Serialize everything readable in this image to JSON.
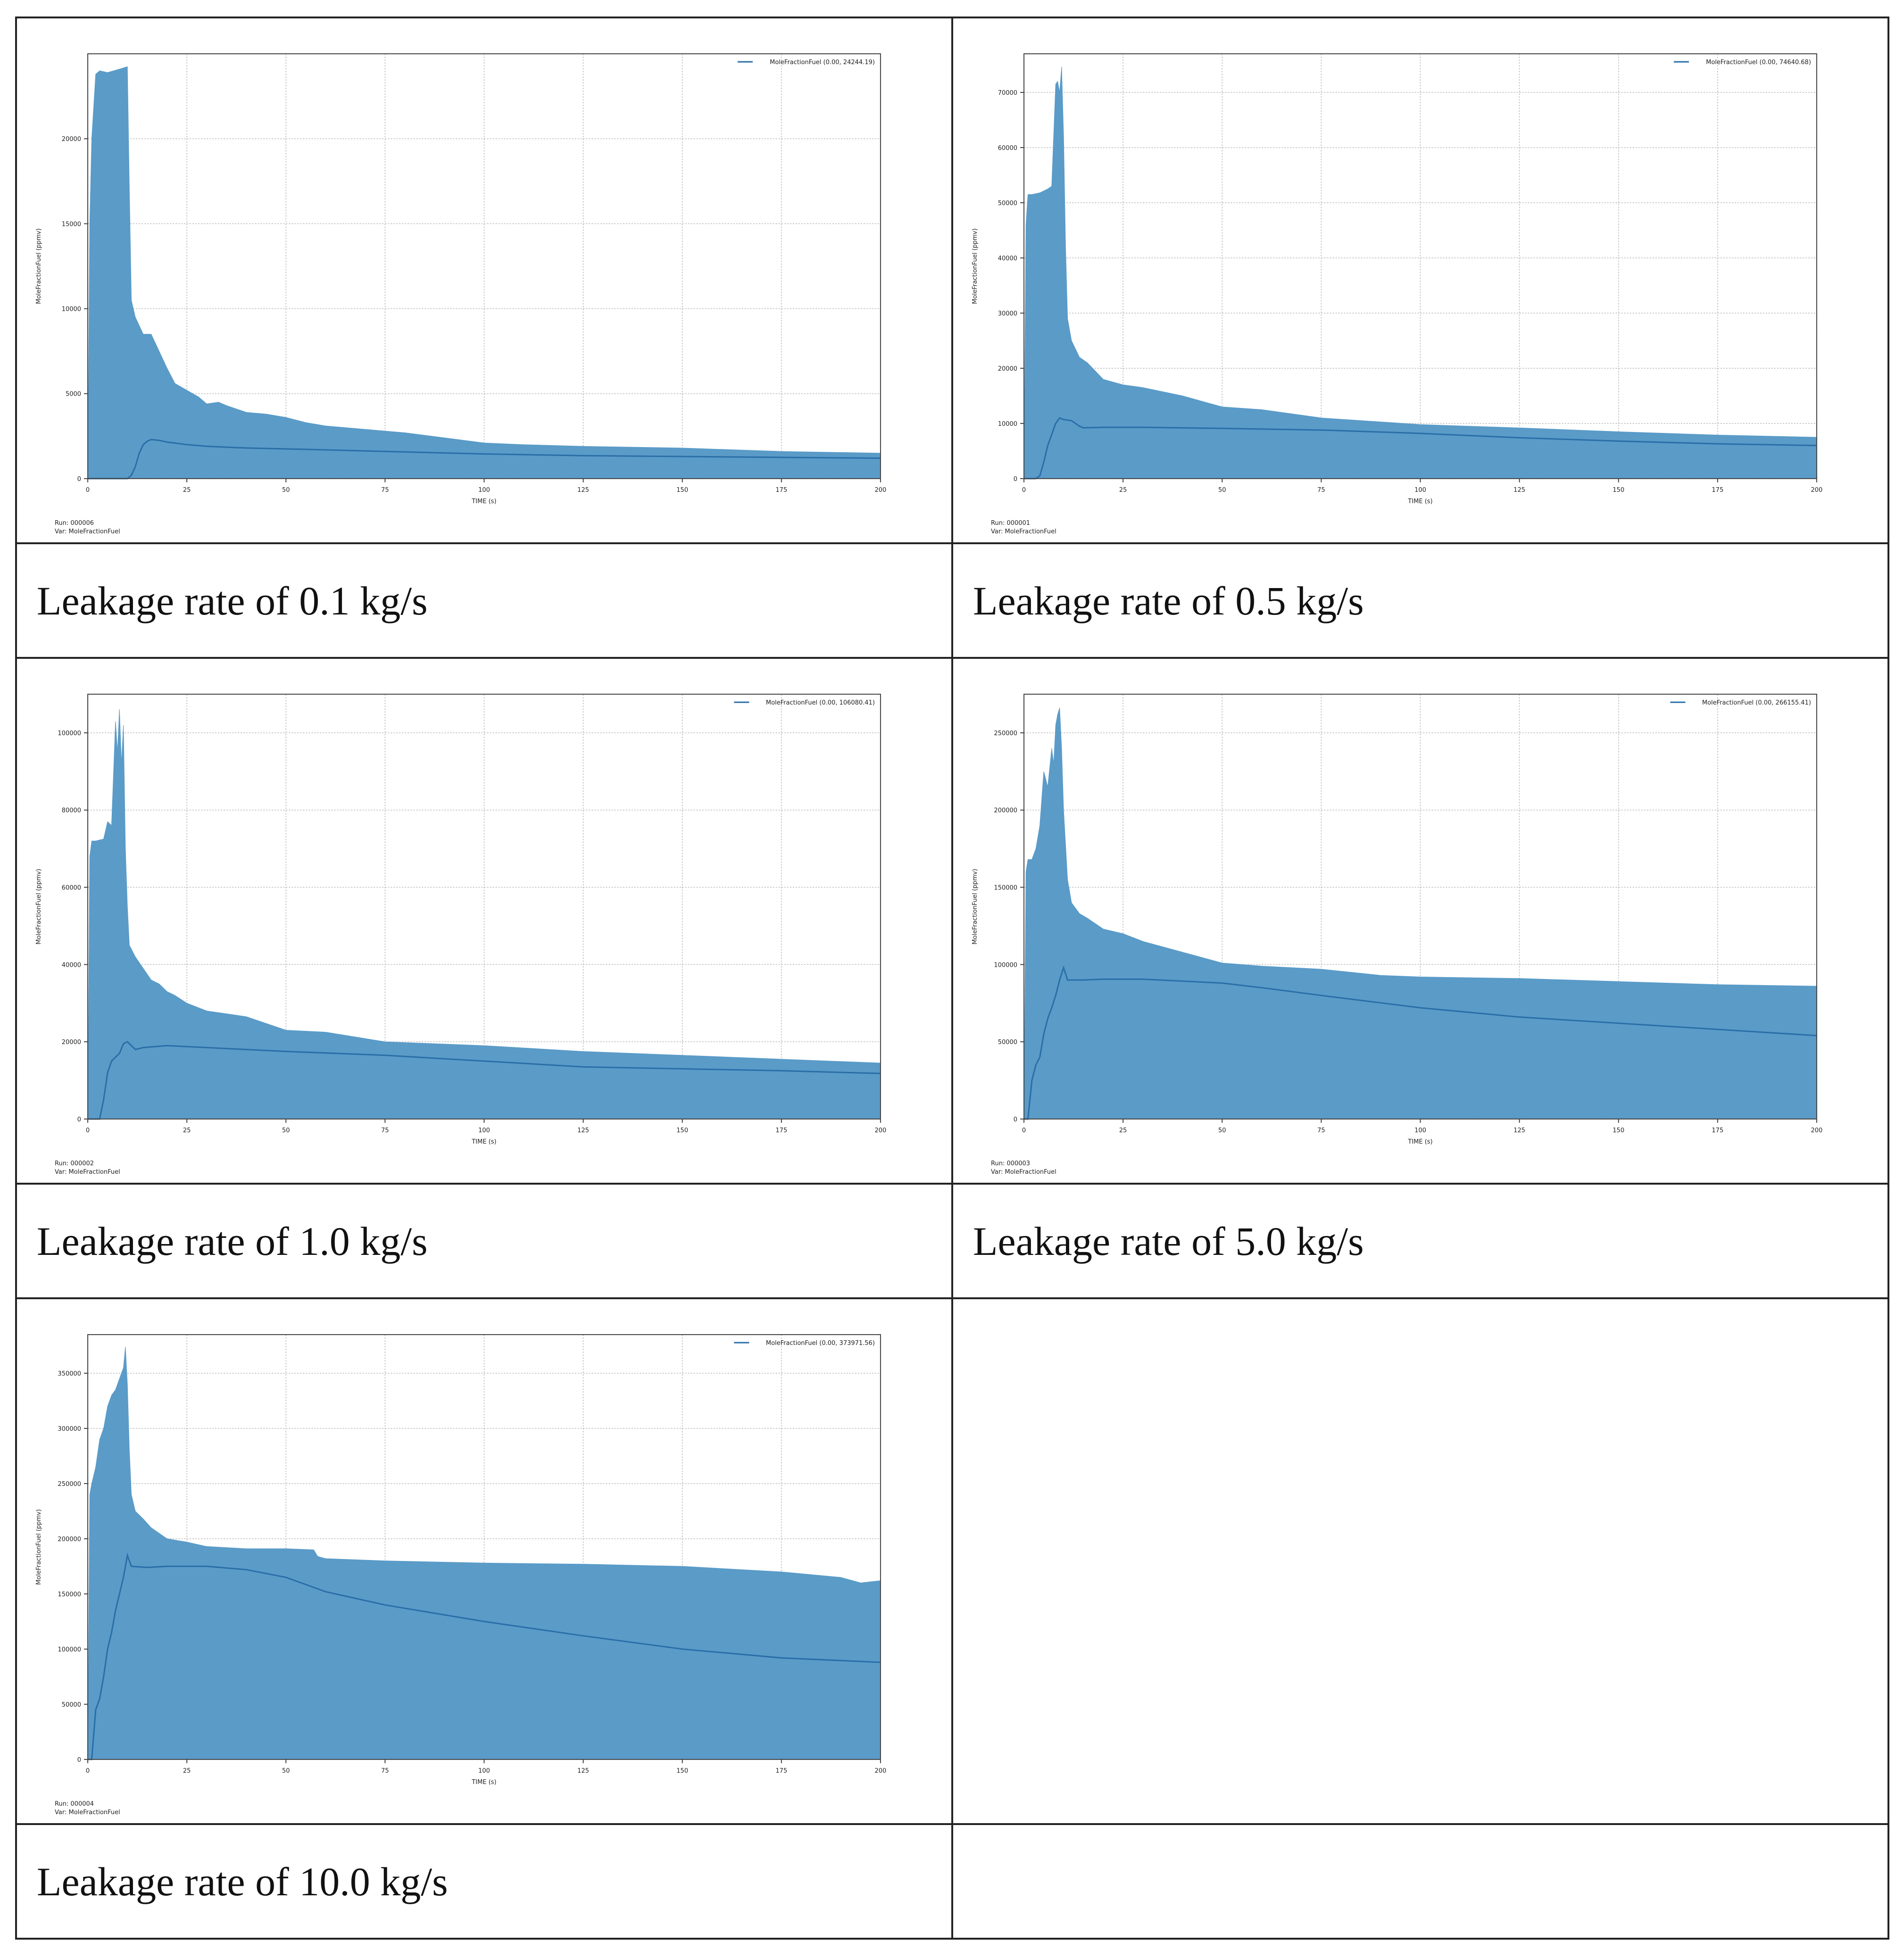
{
  "colors": {
    "fill": "#5a9bc8",
    "line": "#2a6ea8",
    "grid": "#b8b8b8",
    "frame": "#444444"
  },
  "captions": [
    "Leakage rate of 0.1 kg/s",
    "Leakage rate of 0.5 kg/s",
    "Leakage rate of 1.0 kg/s",
    "Leakage rate of 5.0 kg/s",
    "Leakage rate of 10.0 kg/s"
  ],
  "chart_data": [
    {
      "type": "area",
      "xlabel": "TIME (s)",
      "ylabel": "MoleFractionFuel (ppmv)",
      "xlim": [
        0,
        200
      ],
      "ylim": [
        0,
        25000
      ],
      "xticks": [
        0,
        25,
        50,
        75,
        100,
        125,
        150,
        175,
        200
      ],
      "yticks": [
        0,
        5000,
        10000,
        15000,
        20000
      ],
      "legend": "MoleFractionFuel (0.00, 24244.19)",
      "legend_position": "top-right",
      "grid": true,
      "footer": [
        "Run: 000006",
        "Var: MoleFractionFuel"
      ],
      "series": [
        {
          "role": "envelope",
          "x": [
            0,
            0.5,
            1,
            2,
            3,
            5,
            8,
            10,
            10.5,
            11,
            12,
            14,
            16,
            18,
            20,
            22,
            25,
            28,
            30,
            33,
            35,
            40,
            45,
            50,
            55,
            60,
            70,
            80,
            90,
            100,
            110,
            125,
            150,
            175,
            200
          ],
          "y": [
            0,
            15000,
            20000,
            23800,
            24000,
            23900,
            24100,
            24244,
            17000,
            10500,
            9500,
            8500,
            8500,
            7500,
            6500,
            5600,
            5200,
            4800,
            4400,
            4500,
            4300,
            3900,
            3800,
            3600,
            3300,
            3100,
            2900,
            2700,
            2400,
            2100,
            2000,
            1900,
            1800,
            1600,
            1500
          ]
        },
        {
          "role": "line",
          "x": [
            0,
            10,
            11,
            12,
            13,
            14,
            15,
            16,
            18,
            20,
            25,
            30,
            40,
            50,
            75,
            100,
            125,
            150,
            175,
            200
          ],
          "y": [
            0,
            0,
            200,
            700,
            1500,
            2000,
            2200,
            2300,
            2250,
            2150,
            2000,
            1900,
            1800,
            1750,
            1600,
            1450,
            1350,
            1300,
            1250,
            1200
          ]
        }
      ]
    },
    {
      "type": "area",
      "xlabel": "TIME (s)",
      "ylabel": "MoleFractionFuel (ppmv)",
      "xlim": [
        0,
        200
      ],
      "ylim": [
        0,
        77000
      ],
      "xticks": [
        0,
        25,
        50,
        75,
        100,
        125,
        150,
        175,
        200
      ],
      "yticks": [
        0,
        10000,
        20000,
        30000,
        40000,
        50000,
        60000,
        70000
      ],
      "legend": "MoleFractionFuel (0.00, 74640.68)",
      "legend_position": "top-right",
      "grid": true,
      "footer": [
        "Run: 000001",
        "Var: MoleFractionFuel"
      ],
      "series": [
        {
          "role": "envelope",
          "x": [
            0,
            0.5,
            1,
            2,
            4,
            6,
            7,
            8,
            8.5,
            9,
            9.5,
            10,
            10.5,
            11,
            12,
            14,
            16,
            18,
            20,
            25,
            30,
            40,
            50,
            60,
            75,
            100,
            125,
            150,
            175,
            200
          ],
          "y": [
            0,
            46000,
            51500,
            51500,
            51800,
            52500,
            53000,
            71500,
            72000,
            70000,
            74640,
            62000,
            42000,
            29000,
            25000,
            22000,
            21000,
            19500,
            18000,
            17000,
            16500,
            15000,
            13000,
            12500,
            11000,
            9800,
            9200,
            8500,
            7900,
            7500
          ]
        },
        {
          "role": "line",
          "x": [
            0,
            3,
            4,
            5,
            6,
            7,
            8,
            9,
            10,
            12,
            14,
            15,
            20,
            30,
            50,
            75,
            100,
            125,
            150,
            175,
            200
          ],
          "y": [
            0,
            0,
            500,
            3000,
            6000,
            8000,
            10000,
            11000,
            10700,
            10500,
            9500,
            9200,
            9300,
            9300,
            9100,
            8800,
            8200,
            7400,
            6800,
            6300,
            6000
          ]
        }
      ]
    },
    {
      "type": "area",
      "xlabel": "TIME (s)",
      "ylabel": "MoleFractionFuel (ppmv)",
      "xlim": [
        0,
        200
      ],
      "ylim": [
        0,
        110000
      ],
      "xticks": [
        0,
        25,
        50,
        75,
        100,
        125,
        150,
        175,
        200
      ],
      "yticks": [
        0,
        20000,
        40000,
        60000,
        80000,
        100000
      ],
      "legend": "MoleFractionFuel (0.00, 106080.41)",
      "legend_position": "top-right",
      "grid": true,
      "footer": [
        "Run: 000002",
        "Var: MoleFractionFuel"
      ],
      "series": [
        {
          "role": "envelope",
          "x": [
            0,
            0.5,
            1,
            2,
            4,
            5,
            6,
            7,
            7.5,
            8,
            8.5,
            9,
            9.5,
            10,
            10.5,
            11,
            12,
            14,
            16,
            18,
            20,
            22,
            25,
            30,
            40,
            50,
            60,
            75,
            100,
            125,
            150,
            175,
            200
          ],
          "y": [
            0,
            68000,
            72000,
            72000,
            72500,
            77000,
            76000,
            103000,
            95000,
            106080,
            92000,
            102000,
            70000,
            55000,
            45000,
            44000,
            42000,
            39000,
            36000,
            35000,
            33000,
            32000,
            30000,
            28000,
            26500,
            23000,
            22500,
            20000,
            19000,
            17500,
            16500,
            15500,
            14500
          ]
        },
        {
          "role": "line",
          "x": [
            0,
            3,
            4,
            5,
            6,
            7,
            8,
            9,
            10,
            12,
            14,
            20,
            30,
            50,
            75,
            100,
            125,
            150,
            175,
            200
          ],
          "y": [
            0,
            0,
            5000,
            12000,
            15000,
            16000,
            17000,
            19500,
            20000,
            18000,
            18500,
            19000,
            18500,
            17500,
            16500,
            15000,
            13500,
            13000,
            12500,
            11800
          ]
        }
      ]
    },
    {
      "type": "area",
      "xlabel": "TIME (s)",
      "ylabel": "MoleFractionFuel (ppmv)",
      "xlim": [
        0,
        200
      ],
      "ylim": [
        0,
        275000
      ],
      "xticks": [
        0,
        25,
        50,
        75,
        100,
        125,
        150,
        175,
        200
      ],
      "yticks": [
        0,
        50000,
        100000,
        150000,
        200000,
        250000
      ],
      "legend": "MoleFractionFuel (0.00, 266155.41)",
      "legend_position": "top-right",
      "grid": true,
      "footer": [
        "Run: 000003",
        "Var: MoleFractionFuel"
      ],
      "series": [
        {
          "role": "envelope",
          "x": [
            0,
            0.5,
            1,
            2,
            3,
            4,
            5,
            6,
            7,
            7.5,
            8,
            8.5,
            9,
            9.5,
            10,
            11,
            12,
            14,
            16,
            20,
            25,
            30,
            40,
            50,
            60,
            75,
            90,
            100,
            125,
            150,
            175,
            200
          ],
          "y": [
            0,
            160000,
            168000,
            168000,
            175000,
            190000,
            225000,
            215000,
            240000,
            230000,
            255000,
            262000,
            266155,
            240000,
            200000,
            155000,
            140000,
            133000,
            130000,
            123000,
            120000,
            115000,
            108000,
            101000,
            99000,
            97000,
            93000,
            92000,
            91000,
            89000,
            87000,
            86000
          ]
        },
        {
          "role": "line",
          "x": [
            0,
            1,
            2,
            3,
            4,
            5,
            6,
            7,
            8,
            9,
            10,
            11,
            15,
            20,
            30,
            50,
            60,
            75,
            100,
            125,
            150,
            175,
            200
          ],
          "y": [
            0,
            0,
            25000,
            35000,
            40000,
            55000,
            65000,
            72000,
            80000,
            90000,
            98000,
            90000,
            90000,
            90500,
            90500,
            88000,
            85000,
            80000,
            72000,
            66000,
            62000,
            58000,
            54000
          ]
        }
      ]
    },
    {
      "type": "area",
      "xlabel": "TIME (s)",
      "ylabel": "MoleFractionFuel (ppmv)",
      "xlim": [
        0,
        200
      ],
      "ylim": [
        0,
        385000
      ],
      "xticks": [
        0,
        25,
        50,
        75,
        100,
        125,
        150,
        175,
        200
      ],
      "yticks": [
        0,
        50000,
        100000,
        150000,
        200000,
        250000,
        300000,
        350000
      ],
      "legend": "MoleFractionFuel (0.00, 373971.56)",
      "legend_position": "top-right",
      "grid": true,
      "footer": [
        "Run: 000004",
        "Var: MoleFractionFuel"
      ],
      "series": [
        {
          "role": "envelope",
          "x": [
            0,
            0.5,
            1,
            2,
            3,
            4,
            5,
            6,
            7,
            8,
            9,
            9.5,
            10,
            10.5,
            11,
            12,
            14,
            16,
            20,
            25,
            30,
            40,
            50,
            57,
            58,
            60,
            75,
            100,
            125,
            150,
            175,
            190,
            195,
            200
          ],
          "y": [
            0,
            240000,
            250000,
            265000,
            290000,
            300000,
            320000,
            330000,
            335000,
            345000,
            355000,
            373971,
            340000,
            280000,
            240000,
            225000,
            218000,
            210000,
            200000,
            197000,
            193000,
            191000,
            191000,
            190000,
            184000,
            182000,
            180000,
            178000,
            177000,
            175000,
            170000,
            165000,
            160000,
            162000
          ]
        },
        {
          "role": "line",
          "x": [
            0,
            1,
            2,
            3,
            4,
            5,
            6,
            7,
            8,
            9,
            10,
            11,
            15,
            20,
            30,
            40,
            50,
            60,
            75,
            100,
            125,
            150,
            175,
            200
          ],
          "y": [
            0,
            0,
            45000,
            55000,
            75000,
            100000,
            115000,
            135000,
            150000,
            165000,
            185000,
            175000,
            174000,
            175000,
            175000,
            172000,
            165000,
            152000,
            140000,
            125000,
            112000,
            100000,
            92000,
            88000
          ]
        }
      ]
    }
  ]
}
